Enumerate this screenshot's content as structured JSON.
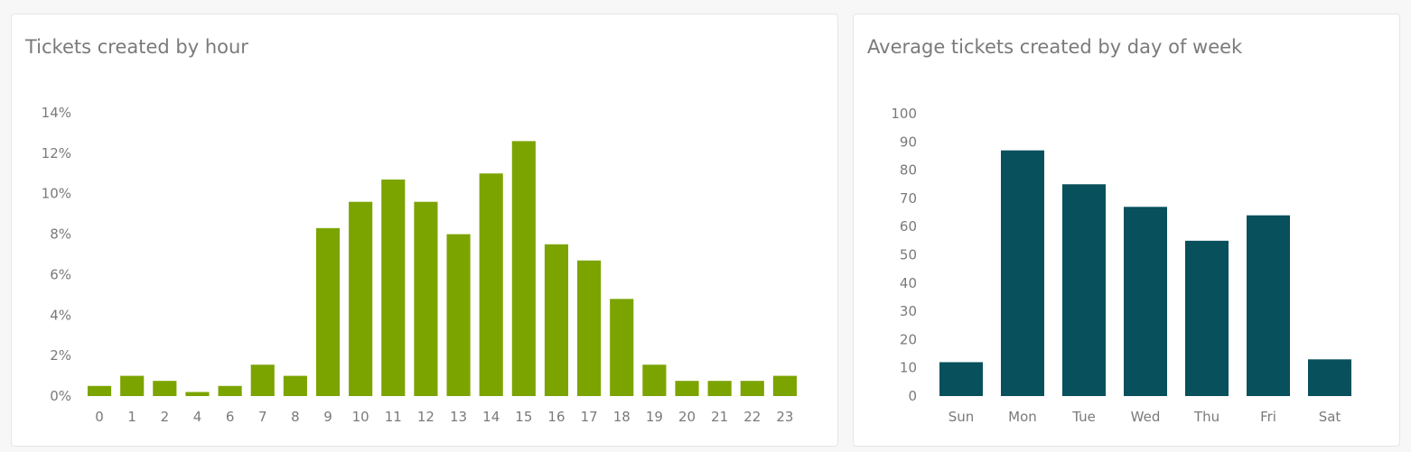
{
  "cards": [
    {
      "title": "Tickets created by hour",
      "chart_data": {
        "type": "bar",
        "title": "Tickets created by hour",
        "xlabel": "",
        "ylabel": "",
        "categories": [
          "0",
          "1",
          "2",
          "4",
          "6",
          "7",
          "8",
          "9",
          "10",
          "11",
          "12",
          "13",
          "14",
          "15",
          "16",
          "17",
          "18",
          "19",
          "20",
          "21",
          "22",
          "23"
        ],
        "values": [
          0.5,
          1.0,
          0.75,
          0.2,
          0.5,
          1.55,
          1.0,
          8.3,
          9.6,
          10.7,
          9.6,
          8.0,
          11.0,
          12.6,
          7.5,
          6.7,
          4.8,
          1.55,
          0.75,
          0.75,
          0.75,
          1.0
        ],
        "ylim": [
          0,
          14
        ],
        "yticks": [
          0,
          2,
          4,
          6,
          8,
          10,
          12,
          14
        ],
        "ytick_labels": [
          "0%",
          "2%",
          "4%",
          "6%",
          "8%",
          "10%",
          "12%",
          "14%"
        ],
        "grid": false,
        "color": "#7ba400"
      }
    },
    {
      "title": "Average tickets created by day of week",
      "chart_data": {
        "type": "bar",
        "title": "Average tickets created by day of week",
        "xlabel": "",
        "ylabel": "",
        "categories": [
          "Sun",
          "Mon",
          "Tue",
          "Wed",
          "Thu",
          "Fri",
          "Sat"
        ],
        "values": [
          12,
          87,
          75,
          67,
          55,
          64,
          13
        ],
        "ylim": [
          0,
          100
        ],
        "yticks": [
          0,
          10,
          20,
          30,
          40,
          50,
          60,
          70,
          80,
          90,
          100
        ],
        "ytick_labels": [
          "0",
          "10",
          "20",
          "30",
          "40",
          "50",
          "60",
          "70",
          "80",
          "90",
          "100"
        ],
        "grid": false,
        "color": "#07505c"
      }
    }
  ]
}
